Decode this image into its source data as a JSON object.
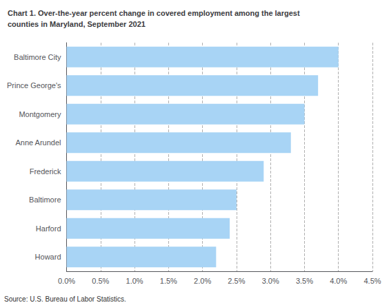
{
  "chart_data": {
    "type": "bar",
    "title": "Chart 1. Over-the-year percent change in covered employment among the largest\ncounties in Maryland, September 2021",
    "categories": [
      "Howard",
      "Harford",
      "Baltimore",
      "Frederick",
      "Anne Arundel",
      "Montgomery",
      "Prince George's",
      "Baltimore City"
    ],
    "values": [
      0.022,
      0.024,
      0.025,
      0.029,
      0.033,
      0.035,
      0.037,
      0.04
    ],
    "color": "#a8d4f5",
    "orientation": "horizontal",
    "xlim": [
      0.0,
      0.045
    ],
    "xticks": [
      {
        "value": 0.0,
        "label": "0.0%"
      },
      {
        "value": 0.005,
        "label": "0.5%"
      },
      {
        "value": 0.01,
        "label": "1.0%"
      },
      {
        "value": 0.015,
        "label": "1.5%"
      },
      {
        "value": 0.02,
        "label": "2.0%"
      },
      {
        "value": 0.025,
        "label": "2.5%"
      },
      {
        "value": 0.03,
        "label": "3.0%"
      },
      {
        "value": 0.035,
        "label": "3.5%"
      },
      {
        "value": 0.04,
        "label": "4.0%"
      },
      {
        "value": 0.045,
        "label": "4.5%"
      }
    ],
    "grid": true,
    "annotations": [
      "Source: U.S. Bureau of Labor Statistics."
    ]
  }
}
